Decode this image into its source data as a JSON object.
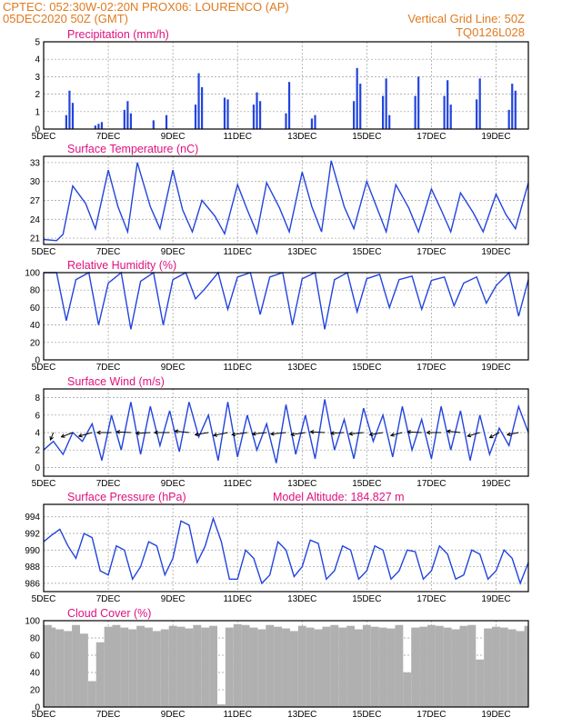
{
  "header": {
    "line1": "CPTEC:   052:30W-02:20N   PROX06: LOURENCO (AP)",
    "line2_left": "05DEC2020 50Z (GMT)",
    "line2_right": "Vertical Grid Line: 50Z",
    "line3_right": "TQ0126L028"
  },
  "x_ticks": [
    "5DEC",
    "7DEC",
    "9DEC",
    "11DEC",
    "13DEC",
    "15DEC",
    "17DEC",
    "19DEC"
  ],
  "colors": {
    "header": "#e07a1f",
    "title": "#e0117e",
    "line": "#2244dd",
    "bars": "#2244dd",
    "cloud": "#b0b0b0",
    "arrows": "#000000"
  },
  "chart_data": [
    {
      "type": "bar",
      "title": "Precipitation (mm/h)",
      "ylim": [
        0,
        5
      ],
      "yticks": [
        0,
        1,
        2,
        3,
        4,
        5
      ],
      "x": [
        5.7,
        5.8,
        5.9,
        6.6,
        6.7,
        6.8,
        7.5,
        7.6,
        7.7,
        8.4,
        8.8,
        9.7,
        9.8,
        9.9,
        10.6,
        10.7,
        11.5,
        11.6,
        11.7,
        12.5,
        12.6,
        13.3,
        13.4,
        14.6,
        14.7,
        14.8,
        15.5,
        15.6,
        15.7,
        16.5,
        16.6,
        17.4,
        17.5,
        17.6,
        18.4,
        18.5,
        19.4,
        19.5,
        19.6
      ],
      "values": [
        0.8,
        2.2,
        1.5,
        0.2,
        0.3,
        0.4,
        1.1,
        1.6,
        0.9,
        0.5,
        0.8,
        1.4,
        3.2,
        2.4,
        1.8,
        1.7,
        1.4,
        2.1,
        1.6,
        0.9,
        2.7,
        0.6,
        0.8,
        1.6,
        3.5,
        2.6,
        1.9,
        2.9,
        0.8,
        1.9,
        3.0,
        1.9,
        2.8,
        1.4,
        1.7,
        2.9,
        1.1,
        2.6,
        2.2
      ]
    },
    {
      "type": "line",
      "title": "Surface Temperature (nC)",
      "ylim": [
        20,
        34
      ],
      "yticks": [
        21,
        24,
        27,
        30,
        33
      ],
      "x": [
        5.0,
        5.4,
        5.6,
        5.9,
        6.3,
        6.6,
        7.0,
        7.3,
        7.6,
        7.9,
        8.3,
        8.6,
        9.0,
        9.3,
        9.6,
        9.9,
        10.3,
        10.6,
        11.0,
        11.3,
        11.6,
        11.9,
        12.3,
        12.6,
        13.0,
        13.3,
        13.6,
        13.9,
        14.3,
        14.6,
        15.0,
        15.3,
        15.6,
        15.9,
        16.3,
        16.6,
        17.0,
        17.3,
        17.6,
        17.9,
        18.3,
        18.6,
        19.0,
        19.3,
        19.6,
        20.0
      ],
      "values": [
        20.8,
        20.6,
        21.6,
        29.3,
        26.5,
        22.5,
        31.8,
        26.0,
        22.0,
        33.0,
        26.0,
        22.5,
        31.8,
        25.5,
        22.0,
        27.0,
        24.5,
        21.7,
        29.5,
        25.5,
        21.8,
        29.8,
        25.8,
        22.0,
        31.5,
        26.0,
        22.0,
        33.3,
        26.0,
        22.5,
        30.0,
        26.0,
        22.0,
        29.5,
        25.8,
        22.0,
        28.8,
        25.5,
        22.0,
        28.2,
        25.0,
        22.0,
        28.0,
        24.8,
        22.5,
        29.8
      ]
    },
    {
      "type": "line",
      "title": "Relative Humidity (%)",
      "ylim": [
        0,
        100
      ],
      "yticks": [
        0,
        20,
        40,
        60,
        80,
        100
      ],
      "x": [
        5.0,
        5.4,
        5.7,
        6.0,
        6.4,
        6.7,
        7.0,
        7.4,
        7.7,
        8.0,
        8.4,
        8.7,
        9.0,
        9.4,
        9.7,
        10.0,
        10.4,
        10.7,
        11.0,
        11.4,
        11.7,
        12.0,
        12.4,
        12.7,
        13.0,
        13.4,
        13.7,
        14.0,
        14.4,
        14.7,
        15.0,
        15.4,
        15.7,
        16.0,
        16.4,
        16.7,
        17.0,
        17.4,
        17.7,
        18.0,
        18.4,
        18.7,
        19.0,
        19.4,
        19.7,
        20.0
      ],
      "values": [
        100,
        100,
        45,
        92,
        100,
        40,
        88,
        100,
        35,
        90,
        100,
        40,
        92,
        100,
        70,
        82,
        100,
        58,
        95,
        100,
        52,
        95,
        100,
        40,
        93,
        100,
        35,
        92,
        100,
        55,
        93,
        98,
        60,
        92,
        96,
        58,
        91,
        95,
        62,
        88,
        95,
        65,
        85,
        100,
        50,
        92
      ]
    },
    {
      "type": "line",
      "title": "Surface Wind (m/s)",
      "ylim": [
        -1,
        9
      ],
      "yticks": [
        0,
        2,
        4,
        6,
        8
      ],
      "x": [
        5.0,
        5.3,
        5.6,
        5.9,
        6.2,
        6.5,
        6.8,
        7.1,
        7.4,
        7.7,
        8.0,
        8.3,
        8.6,
        8.9,
        9.2,
        9.5,
        9.8,
        10.1,
        10.4,
        10.7,
        11.0,
        11.3,
        11.6,
        11.9,
        12.2,
        12.5,
        12.8,
        13.1,
        13.4,
        13.7,
        14.0,
        14.3,
        14.6,
        14.9,
        15.2,
        15.5,
        15.8,
        16.1,
        16.4,
        16.7,
        17.0,
        17.3,
        17.6,
        17.9,
        18.2,
        18.5,
        18.8,
        19.1,
        19.4,
        19.7,
        20.0
      ],
      "values": [
        2.0,
        3.0,
        1.5,
        4.0,
        3.0,
        5.0,
        0.8,
        6.0,
        2.0,
        7.5,
        1.5,
        7.0,
        2.5,
        6.5,
        1.8,
        7.5,
        3.5,
        6.0,
        0.8,
        7.5,
        1.2,
        6.0,
        2.0,
        5.0,
        0.5,
        7.2,
        1.5,
        6.0,
        1.0,
        7.8,
        2.0,
        5.5,
        1.0,
        6.8,
        3.0,
        6.0,
        1.2,
        7.0,
        2.0,
        5.5,
        1.0,
        7.0,
        2.0,
        6.5,
        0.8,
        6.0,
        1.5,
        4.5,
        2.5,
        7.0,
        4.0
      ],
      "vectors": {
        "x": [
          5.3,
          5.9,
          6.5,
          7.1,
          7.7,
          8.3,
          8.9,
          9.5,
          10.1,
          10.7,
          11.3,
          11.9,
          12.5,
          13.1,
          13.7,
          14.3,
          14.9,
          15.5,
          16.1,
          16.7,
          17.3,
          17.9,
          18.5,
          19.1,
          19.7
        ],
        "u": [
          -0.3,
          -1.2,
          -1.4,
          -1.5,
          -1.5,
          -1.5,
          -1.6,
          -1.5,
          -1.4,
          -1.5,
          -1.6,
          -1.5,
          -1.6,
          -1.5,
          -1.5,
          -1.4,
          -1.5,
          -1.4,
          -1.2,
          -1.5,
          -1.5,
          -1.4,
          -1.3,
          -1.0,
          -1.2
        ],
        "v": [
          -1.0,
          -0.6,
          -0.5,
          0.0,
          0.1,
          -0.1,
          0.0,
          0.2,
          -0.3,
          -0.4,
          -0.3,
          -0.2,
          -0.2,
          -0.3,
          0.1,
          -0.1,
          -0.2,
          -0.3,
          -0.4,
          0.1,
          0.0,
          0.2,
          -0.5,
          -0.7,
          -0.3
        ]
      }
    },
    {
      "type": "line",
      "title": "Surface Pressure (hPa)",
      "subtitle": "Model Altitude: 184.827 m",
      "ylim": [
        985,
        995.5
      ],
      "yticks": [
        986,
        988,
        990,
        992,
        994
      ],
      "x": [
        5.0,
        5.25,
        5.5,
        5.75,
        6.0,
        6.25,
        6.5,
        6.75,
        7.0,
        7.25,
        7.5,
        7.75,
        8.0,
        8.25,
        8.5,
        8.75,
        9.0,
        9.25,
        9.5,
        9.75,
        10.0,
        10.25,
        10.5,
        10.75,
        11.0,
        11.25,
        11.5,
        11.75,
        12.0,
        12.25,
        12.5,
        12.75,
        13.0,
        13.25,
        13.5,
        13.75,
        14.0,
        14.25,
        14.5,
        14.75,
        15.0,
        15.25,
        15.5,
        15.75,
        16.0,
        16.25,
        16.5,
        16.75,
        17.0,
        17.25,
        17.5,
        17.75,
        18.0,
        18.25,
        18.5,
        18.75,
        19.0,
        19.25,
        19.5,
        19.75,
        20.0
      ],
      "values": [
        991.0,
        991.8,
        992.5,
        990.5,
        989.0,
        992.0,
        991.5,
        987.5,
        987.0,
        990.5,
        990.0,
        986.5,
        988.0,
        991.0,
        990.5,
        987.0,
        989.0,
        993.5,
        993.0,
        988.5,
        990.5,
        993.8,
        991.0,
        986.5,
        986.5,
        990.0,
        989.0,
        986.0,
        987.0,
        991.0,
        990.0,
        986.8,
        988.0,
        991.2,
        990.8,
        986.5,
        987.5,
        990.5,
        990.0,
        986.5,
        987.5,
        990.5,
        990.0,
        986.5,
        987.5,
        990.0,
        989.8,
        986.5,
        987.5,
        990.5,
        989.5,
        986.5,
        987.0,
        990.0,
        989.5,
        986.5,
        987.5,
        990.0,
        989.0,
        986.0,
        988.5
      ]
    },
    {
      "type": "area",
      "title": "Cloud Cover (%)",
      "ylim": [
        0,
        100
      ],
      "yticks": [
        0,
        20,
        40,
        60,
        80,
        100
      ],
      "x": [
        5.0,
        5.25,
        5.5,
        5.75,
        6.0,
        6.25,
        6.5,
        6.75,
        7.0,
        7.25,
        7.5,
        7.75,
        8.0,
        8.25,
        8.5,
        8.75,
        9.0,
        9.25,
        9.5,
        9.75,
        10.0,
        10.25,
        10.5,
        10.75,
        11.0,
        11.25,
        11.5,
        11.75,
        12.0,
        12.25,
        12.5,
        12.75,
        13.0,
        13.25,
        13.5,
        13.75,
        14.0,
        14.25,
        14.5,
        14.75,
        15.0,
        15.25,
        15.5,
        15.75,
        16.0,
        16.25,
        16.5,
        16.75,
        17.0,
        17.25,
        17.5,
        17.75,
        18.0,
        18.25,
        18.5,
        18.75,
        19.0,
        19.25,
        19.5,
        19.75,
        20.0
      ],
      "values": [
        95,
        92,
        90,
        88,
        95,
        85,
        30,
        75,
        93,
        95,
        92,
        90,
        94,
        92,
        88,
        90,
        94,
        93,
        91,
        95,
        92,
        94,
        3,
        92,
        96,
        95,
        92,
        90,
        95,
        93,
        91,
        88,
        94,
        92,
        90,
        93,
        95,
        92,
        94,
        90,
        95,
        93,
        92,
        91,
        95,
        40,
        92,
        93,
        95,
        94,
        92,
        90,
        94,
        95,
        55,
        91,
        93,
        92,
        90,
        88,
        94
      ]
    }
  ]
}
